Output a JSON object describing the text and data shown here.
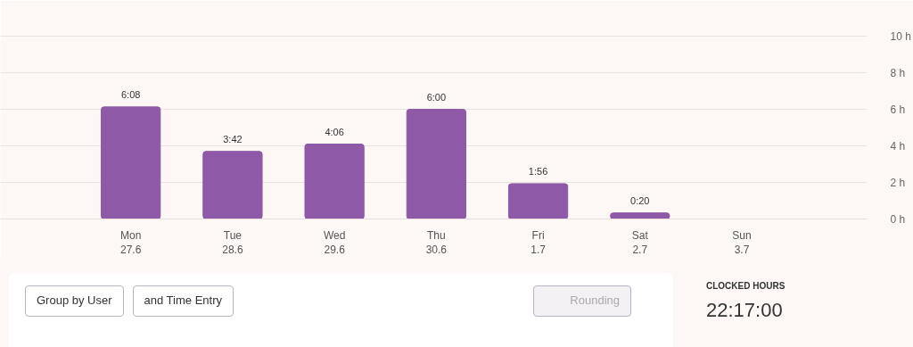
{
  "chart_data": {
    "type": "bar",
    "categories": [
      "Mon\n27.6",
      "Tue\n28.6",
      "Wed\n29.6",
      "Thu\n30.6",
      "Fri\n1.7",
      "Sat\n2.7",
      "Sun\n3.7"
    ],
    "values": [
      6.133,
      3.7,
      4.1,
      6.0,
      1.933,
      0.333,
      0
    ],
    "value_labels": [
      "6:08",
      "3:42",
      "4:06",
      "6:00",
      "1:56",
      "0:20",
      null
    ],
    "color": "#8e59a6",
    "ylim": [
      0,
      10.3
    ],
    "yticks": [
      {
        "value": 0,
        "label": "0 h"
      },
      {
        "value": 2,
        "label": "2 h"
      },
      {
        "value": 4,
        "label": "4 h"
      },
      {
        "value": 6,
        "label": "6 h"
      },
      {
        "value": 8,
        "label": "8 h"
      },
      {
        "value": 10,
        "label": "10 h"
      }
    ],
    "grid": "y",
    "annotations": [
      "Group by User",
      "and Time Entry",
      "Rounding",
      "CLOCKED HOURS",
      "22:17:00"
    ]
  }
}
